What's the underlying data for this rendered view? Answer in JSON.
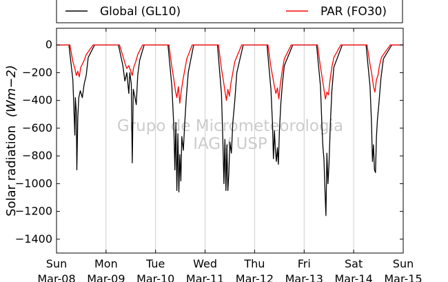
{
  "chart_data": {
    "type": "line",
    "ylabel_text": "Solar radiation",
    "ylabel_units": "(Wm−2)",
    "ylim": [
      -1500,
      120
    ],
    "yticks": [
      0,
      -200,
      -400,
      -600,
      -800,
      -1000,
      -1200,
      -1400
    ],
    "ytick_labels": [
      "0",
      "−200",
      "−400",
      "−600",
      "−800",
      "−1000",
      "−1200",
      "−1400"
    ],
    "xlim_days": [
      0,
      7
    ],
    "xticks": [
      {
        "day": "Sun",
        "date": "Mar-08"
      },
      {
        "day": "Mon",
        "date": "Mar-09"
      },
      {
        "day": "Tue",
        "date": "Mar-10"
      },
      {
        "day": "Wed",
        "date": "Mar-11"
      },
      {
        "day": "Thu",
        "date": "Mar-12"
      },
      {
        "day": "Fri",
        "date": "Mar-13"
      },
      {
        "day": "Sat",
        "date": "Mar-14"
      },
      {
        "day": "Sun",
        "date": "Mar-15"
      }
    ],
    "grid": "vertical",
    "legend_placement": "top, outside",
    "series": [
      {
        "name": "Global (GL10)",
        "color": "#000000",
        "daily": [
          {
            "sunrise": 0.25,
            "sunset": 0.77,
            "points": [
              [
                0.33,
                -250
              ],
              [
                0.37,
                -650
              ],
              [
                0.38,
                -380
              ],
              [
                0.4,
                -480
              ],
              [
                0.41,
                -900
              ],
              [
                0.43,
                -520
              ],
              [
                0.45,
                -380
              ],
              [
                0.48,
                -330
              ],
              [
                0.52,
                -380
              ],
              [
                0.56,
                -280
              ],
              [
                0.6,
                -220
              ],
              [
                0.64,
                -90
              ]
            ]
          },
          {
            "sunrise": 0.25,
            "sunset": 0.77,
            "points": [
              [
                0.34,
                -150
              ],
              [
                0.38,
                -260
              ],
              [
                0.42,
                -200
              ],
              [
                0.46,
                -350
              ],
              [
                0.48,
                -200
              ],
              [
                0.51,
                -280
              ],
              [
                0.53,
                -850
              ],
              [
                0.55,
                -320
              ],
              [
                0.58,
                -370
              ],
              [
                0.61,
                -430
              ],
              [
                0.64,
                -220
              ],
              [
                0.68,
                -110
              ]
            ]
          },
          {
            "sunrise": 0.25,
            "sunset": 0.77,
            "points": [
              [
                0.33,
                -300
              ],
              [
                0.37,
                -600
              ],
              [
                0.39,
                -900
              ],
              [
                0.41,
                -560
              ],
              [
                0.43,
                -1050
              ],
              [
                0.45,
                -640
              ],
              [
                0.47,
                -1060
              ],
              [
                0.49,
                -790
              ],
              [
                0.51,
                -980
              ],
              [
                0.53,
                -660
              ],
              [
                0.56,
                -760
              ],
              [
                0.59,
                -560
              ],
              [
                0.62,
                -380
              ],
              [
                0.66,
                -200
              ]
            ]
          },
          {
            "sunrise": 0.25,
            "sunset": 0.77,
            "points": [
              [
                0.33,
                -350
              ],
              [
                0.36,
                -700
              ],
              [
                0.38,
                -1000
              ],
              [
                0.4,
                -680
              ],
              [
                0.42,
                -1050
              ],
              [
                0.44,
                -720
              ],
              [
                0.46,
                -1050
              ],
              [
                0.48,
                -920
              ],
              [
                0.5,
                -700
              ],
              [
                0.53,
                -780
              ],
              [
                0.56,
                -560
              ],
              [
                0.6,
                -400
              ],
              [
                0.64,
                -200
              ]
            ]
          },
          {
            "sunrise": 0.25,
            "sunset": 0.77,
            "points": [
              [
                0.33,
                -320
              ],
              [
                0.36,
                -560
              ],
              [
                0.38,
                -820
              ],
              [
                0.4,
                -620
              ],
              [
                0.42,
                -760
              ],
              [
                0.44,
                -840
              ],
              [
                0.46,
                -740
              ],
              [
                0.48,
                -860
              ],
              [
                0.5,
                -620
              ],
              [
                0.53,
                -420
              ],
              [
                0.56,
                -280
              ],
              [
                0.6,
                -150
              ]
            ]
          },
          {
            "sunrise": 0.25,
            "sunset": 0.77,
            "points": [
              [
                0.33,
                -300
              ],
              [
                0.36,
                -600
              ],
              [
                0.38,
                -740
              ],
              [
                0.4,
                -820
              ],
              [
                0.42,
                -1050
              ],
              [
                0.44,
                -1230
              ],
              [
                0.46,
                -780
              ],
              [
                0.48,
                -1000
              ],
              [
                0.5,
                -880
              ],
              [
                0.53,
                -560
              ],
              [
                0.56,
                -330
              ],
              [
                0.6,
                -160
              ]
            ]
          },
          {
            "sunrise": 0.25,
            "sunset": 0.77,
            "points": [
              [
                0.33,
                -300
              ],
              [
                0.36,
                -560
              ],
              [
                0.38,
                -840
              ],
              [
                0.4,
                -720
              ],
              [
                0.42,
                -900
              ],
              [
                0.44,
                -920
              ],
              [
                0.46,
                -660
              ],
              [
                0.48,
                -540
              ],
              [
                0.51,
                -420
              ],
              [
                0.55,
                -240
              ],
              [
                0.6,
                -100
              ]
            ]
          }
        ]
      },
      {
        "name": "PAR (FO30)",
        "color": "#ff0000",
        "daily": [
          {
            "sunrise": 0.27,
            "sunset": 0.74,
            "points": [
              [
                0.33,
                -120
              ],
              [
                0.37,
                -170
              ],
              [
                0.4,
                -220
              ],
              [
                0.43,
                -190
              ],
              [
                0.46,
                -230
              ],
              [
                0.49,
                -160
              ],
              [
                0.52,
                -140
              ],
              [
                0.56,
                -110
              ],
              [
                0.6,
                -70
              ]
            ]
          },
          {
            "sunrise": 0.27,
            "sunset": 0.74,
            "points": [
              [
                0.34,
                -80
              ],
              [
                0.38,
                -130
              ],
              [
                0.42,
                -170
              ],
              [
                0.46,
                -150
              ],
              [
                0.5,
                -190
              ],
              [
                0.53,
                -220
              ],
              [
                0.56,
                -160
              ],
              [
                0.6,
                -120
              ],
              [
                0.64,
                -70
              ]
            ]
          },
          {
            "sunrise": 0.27,
            "sunset": 0.74,
            "points": [
              [
                0.33,
                -160
              ],
              [
                0.37,
                -250
              ],
              [
                0.4,
                -330
              ],
              [
                0.43,
                -380
              ],
              [
                0.46,
                -300
              ],
              [
                0.49,
                -420
              ],
              [
                0.52,
                -330
              ],
              [
                0.55,
                -260
              ],
              [
                0.59,
                -180
              ],
              [
                0.63,
                -100
              ]
            ]
          },
          {
            "sunrise": 0.27,
            "sunset": 0.74,
            "points": [
              [
                0.33,
                -170
              ],
              [
                0.37,
                -260
              ],
              [
                0.4,
                -330
              ],
              [
                0.43,
                -400
              ],
              [
                0.46,
                -320
              ],
              [
                0.49,
                -370
              ],
              [
                0.52,
                -280
              ],
              [
                0.56,
                -200
              ],
              [
                0.6,
                -120
              ]
            ]
          },
          {
            "sunrise": 0.27,
            "sunset": 0.74,
            "points": [
              [
                0.33,
                -160
              ],
              [
                0.37,
                -240
              ],
              [
                0.4,
                -300
              ],
              [
                0.43,
                -350
              ],
              [
                0.46,
                -310
              ],
              [
                0.49,
                -390
              ],
              [
                0.52,
                -280
              ],
              [
                0.56,
                -180
              ],
              [
                0.6,
                -100
              ]
            ]
          },
          {
            "sunrise": 0.27,
            "sunset": 0.74,
            "points": [
              [
                0.33,
                -160
              ],
              [
                0.37,
                -250
              ],
              [
                0.4,
                -320
              ],
              [
                0.43,
                -390
              ],
              [
                0.46,
                -340
              ],
              [
                0.49,
                -360
              ],
              [
                0.52,
                -260
              ],
              [
                0.56,
                -160
              ],
              [
                0.6,
                -90
              ]
            ]
          },
          {
            "sunrise": 0.27,
            "sunset": 0.74,
            "points": [
              [
                0.33,
                -140
              ],
              [
                0.37,
                -220
              ],
              [
                0.4,
                -300
              ],
              [
                0.43,
                -340
              ],
              [
                0.46,
                -250
              ],
              [
                0.49,
                -220
              ],
              [
                0.52,
                -150
              ],
              [
                0.56,
                -90
              ]
            ]
          }
        ]
      }
    ],
    "legend": [
      "Global (GL10)",
      "PAR (FO30)"
    ],
    "watermark_line1": "Grupo de Micrometeorologia",
    "watermark_line2": "IAG / USP"
  }
}
